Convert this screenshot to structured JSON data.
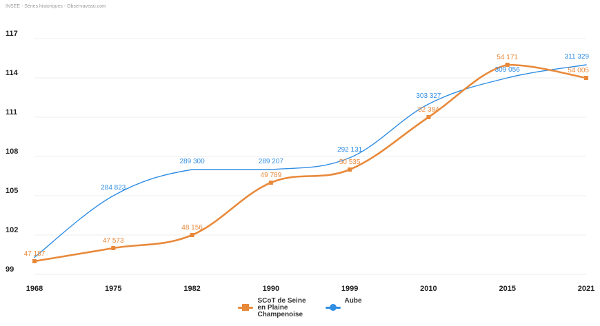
{
  "source": "INSEE - Séries historiques - Observaveau.com",
  "colors": {
    "scot": "#e8893a",
    "aube": "#2f8de4",
    "grid": "#ececec"
  },
  "legend": {
    "scot_label": "SCoT de Seine\nen Plaine\nChampenoise",
    "aube_label": "Aube"
  },
  "chart_data": {
    "type": "line",
    "x": [
      "1968",
      "1975",
      "1982",
      "1990",
      "1999",
      "2010",
      "2015",
      "2021"
    ],
    "ylim": [
      99,
      117
    ],
    "yticks": [
      99,
      102,
      105,
      108,
      111,
      114,
      117
    ],
    "grid": true,
    "legend_position": "bottom",
    "series": [
      {
        "name": "SCoT de Seine en Plaine Champenoise",
        "color": "#e8893a",
        "values": [
          100,
          101,
          102,
          106,
          107,
          111,
          115,
          114
        ],
        "labels": [
          "47 187",
          "47 573",
          "48 156",
          "49 789",
          "50 535",
          "52 384",
          "54 171",
          "54 005"
        ]
      },
      {
        "name": "Aube",
        "color": "#2f8de4",
        "values": [
          100.3,
          105.0,
          107.0,
          107.0,
          107.9,
          112.0,
          114.0,
          115.0
        ],
        "labels": [
          "",
          "284 823",
          "289 300",
          "289 207",
          "292 131",
          "303 327",
          "309 056",
          "311 329"
        ]
      }
    ]
  }
}
